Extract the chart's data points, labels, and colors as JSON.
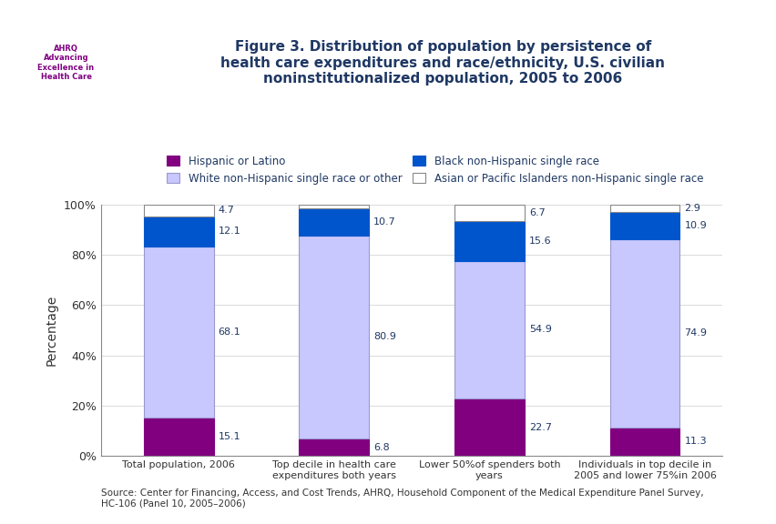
{
  "title": "Figure 3. Distribution of population by persistence of\nhealth care expenditures and race/ethnicity, U.S. civilian\nnoninstitutionalized population, 2005 to 2006",
  "categories": [
    "Total population, 2006",
    "Top decile in health care\nexpenditures both years",
    "Lower 50%of spenders both\nyears",
    "Individuals in top decile in\n2005 and lower 75%in 2006"
  ],
  "series": {
    "Hispanic or Latino": [
      15.1,
      6.8,
      22.7,
      11.3
    ],
    "White non-Hispanic single race or other": [
      68.1,
      80.9,
      54.9,
      74.9
    ],
    "Black non-Hispanic single race": [
      12.1,
      10.7,
      15.6,
      10.9
    ],
    "Asian or Pacific Islanders non-Hispanic single race": [
      4.7,
      1.6,
      6.7,
      2.9
    ]
  },
  "colors": {
    "Hispanic or Latino": "#800080",
    "White non-Hispanic single race or other": "#C8C8FF",
    "Black non-Hispanic single race": "#0055CC",
    "Asian or Pacific Islanders non-Hispanic single race": "#FFFFFF"
  },
  "bar_edge_colors": {
    "Hispanic or Latino": "#800080",
    "White non-Hispanic single race or other": "#9999CC",
    "Black non-Hispanic single race": "#0055CC",
    "Asian or Pacific Islanders non-Hispanic single race": "#888888"
  },
  "ylabel": "Percentage",
  "ylim": [
    0,
    100
  ],
  "yticks": [
    0,
    20,
    40,
    60,
    80,
    100
  ],
  "ytick_labels": [
    "0%",
    "20%",
    "40%",
    "60%",
    "80%",
    "100%"
  ],
  "source_text": "Source: Center for Financing, Access, and Cost Trends, AHRQ, Household Component of the Medical Expenditure Panel Survey,\nHC-106 (Panel 10, 2005–2006)",
  "background_color": "#FFFFFF",
  "plot_bg_color": "#FFFFFF",
  "title_color": "#1F3864",
  "header_bg_color": "#FFFFFF"
}
